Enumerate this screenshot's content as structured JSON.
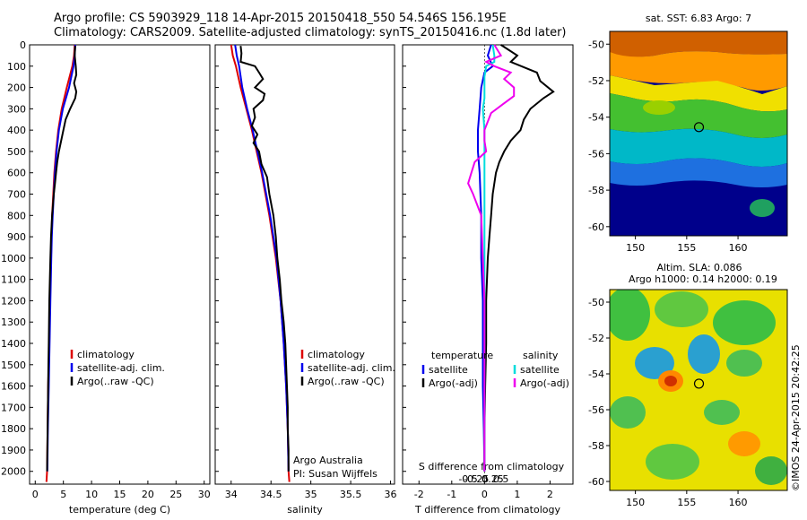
{
  "header": {
    "line1": "Argo profile: CS 5903929_118 14-Apr-2015 20150418_550 54.546S 156.195E",
    "line2": "Climatology: CARS2009. Satellite-adjusted climatology: synTS_20150416.nc (1.8d later)"
  },
  "chart_data": [
    {
      "type": "line",
      "id": "temperature",
      "xlabel": "temperature (deg C)",
      "ylabel": "",
      "xlim": [
        -1,
        31
      ],
      "ylim": [
        2060,
        0
      ],
      "xticks": [
        0,
        5,
        10,
        15,
        20,
        25,
        30
      ],
      "yticks": [
        0,
        100,
        200,
        300,
        400,
        500,
        600,
        700,
        800,
        900,
        1000,
        1100,
        1200,
        1300,
        1400,
        1500,
        1600,
        1700,
        1800,
        1900,
        2000
      ],
      "legend": [
        "climatology",
        "satellite-adj. clim.",
        "Argo(..raw -QC)"
      ],
      "legend_placement": "lower-right",
      "series": [
        {
          "name": "climatology",
          "color": "#dd0000",
          "depth": [
            0,
            50,
            100,
            200,
            300,
            400,
            500,
            600,
            700,
            800,
            900,
            1000,
            1200,
            1400,
            1600,
            1800,
            2000,
            2050
          ],
          "values": [
            7.0,
            6.9,
            6.6,
            5.6,
            4.7,
            4.1,
            3.7,
            3.4,
            3.2,
            3.0,
            2.9,
            2.8,
            2.6,
            2.5,
            2.3,
            2.2,
            2.1,
            2.0
          ]
        },
        {
          "name": "satellite-adj. clim.",
          "color": "#0000ee",
          "depth": [
            0,
            50,
            100,
            200,
            300,
            400,
            500,
            600,
            700,
            800,
            900,
            1000,
            1200,
            1400,
            1600,
            1800,
            2000
          ],
          "values": [
            7.1,
            7.0,
            6.8,
            6.0,
            4.9,
            4.2,
            3.8,
            3.5,
            3.3,
            3.1,
            2.95,
            2.85,
            2.7,
            2.55,
            2.4,
            2.25,
            2.15
          ]
        },
        {
          "name": "Argo(..raw -QC)",
          "color": "#000000",
          "depth": [
            5,
            50,
            100,
            140,
            180,
            220,
            250,
            300,
            350,
            400,
            450,
            500,
            550,
            600,
            650,
            700,
            750,
            800,
            850,
            900,
            1000,
            1100,
            1200,
            1300,
            1400,
            1500,
            1600,
            1700,
            1800,
            1900,
            2000
          ],
          "values": [
            7.1,
            7.0,
            7.2,
            7.3,
            6.9,
            7.3,
            7.1,
            6.2,
            5.4,
            5.0,
            4.6,
            4.2,
            3.9,
            3.7,
            3.5,
            3.3,
            3.15,
            3.0,
            2.9,
            2.8,
            2.7,
            2.6,
            2.5,
            2.45,
            2.4,
            2.35,
            2.3,
            2.25,
            2.2,
            2.15,
            2.1
          ]
        }
      ]
    },
    {
      "type": "line",
      "id": "salinity",
      "xlabel": "salinity",
      "ylabel": "",
      "xlim": [
        33.8,
        36.05
      ],
      "ylim": [
        2060,
        0
      ],
      "xticks": [
        34,
        34.5,
        35,
        35.5,
        36
      ],
      "legend": [
        "climatology",
        "satellite-adj. clim.",
        "Argo(..raw -QC)"
      ],
      "legend_placement": "lower-right",
      "annotations": [
        "Argo Australia",
        "PI: Susan Wijffels"
      ],
      "series": [
        {
          "name": "climatology",
          "color": "#dd0000",
          "depth": [
            0,
            50,
            100,
            200,
            300,
            400,
            500,
            600,
            700,
            800,
            900,
            1000,
            1200,
            1400,
            1600,
            1800,
            2000,
            2050
          ],
          "values": [
            34.0,
            34.02,
            34.06,
            34.12,
            34.19,
            34.26,
            34.32,
            34.38,
            34.43,
            34.48,
            34.52,
            34.56,
            34.62,
            34.66,
            34.69,
            34.71,
            34.72,
            34.73
          ]
        },
        {
          "name": "satellite-adj. clim.",
          "color": "#0000ee",
          "depth": [
            0,
            50,
            100,
            200,
            300,
            400,
            500,
            600,
            700,
            800,
            900,
            1000,
            1200,
            1400,
            1600,
            1800,
            2000
          ],
          "values": [
            34.05,
            34.07,
            34.1,
            34.14,
            34.2,
            34.27,
            34.33,
            34.39,
            34.44,
            34.49,
            34.53,
            34.57,
            34.62,
            34.66,
            34.69,
            34.71,
            34.72
          ]
        },
        {
          "name": "Argo(..raw -QC)",
          "color": "#000000",
          "depth": [
            5,
            40,
            80,
            100,
            130,
            160,
            200,
            230,
            260,
            300,
            340,
            380,
            420,
            460,
            500,
            560,
            620,
            700,
            800,
            900,
            1000,
            1100,
            1200,
            1300,
            1400,
            1500,
            1600,
            1700,
            1800,
            1900,
            2000
          ],
          "values": [
            34.12,
            34.13,
            34.12,
            34.3,
            34.35,
            34.4,
            34.3,
            34.42,
            34.4,
            34.28,
            34.3,
            34.26,
            34.33,
            34.28,
            34.35,
            34.38,
            34.45,
            34.48,
            34.53,
            34.56,
            34.58,
            34.61,
            34.63,
            34.66,
            34.68,
            34.69,
            34.7,
            34.71,
            34.71,
            34.72,
            34.72
          ]
        }
      ]
    },
    {
      "type": "line",
      "id": "difference",
      "xlabel": "T difference from climatology",
      "x2label": "S difference from climatology",
      "xlim": [
        -2.5,
        2.7
      ],
      "xticks": [
        -2,
        -1,
        0,
        1,
        2
      ],
      "x2ticks": [
        "-0.5",
        "-0.25",
        "0",
        "0.25",
        "0.5"
      ],
      "x2tick_values": [
        -0.5,
        -0.25,
        0,
        0.25,
        0.5
      ],
      "legend_titles": [
        "temperature",
        "salinity"
      ],
      "legend": [
        "satellite",
        "Argo(-adj)",
        "satellite",
        "Argo(-adj)"
      ],
      "legend_placement": "lower-center",
      "series": [
        {
          "name": "satellite",
          "color": "#0000ee",
          "depth": [
            0,
            50,
            100,
            130,
            200,
            300,
            400,
            500,
            600,
            800,
            1000,
            1200,
            1400,
            1600,
            1800,
            2000
          ],
          "values": [
            0.2,
            0.1,
            0.25,
            0.0,
            -0.1,
            -0.15,
            -0.2,
            -0.2,
            -0.15,
            -0.1,
            -0.1,
            -0.05,
            -0.05,
            -0.05,
            -0.02,
            0.0
          ]
        },
        {
          "name": "Argo(-adj)",
          "color": "#000000",
          "depth": [
            0,
            50,
            80,
            130,
            170,
            220,
            250,
            300,
            350,
            400,
            450,
            500,
            550,
            600,
            650,
            700,
            800,
            900,
            1000,
            1200,
            1400,
            1600,
            1800,
            2000
          ],
          "values": [
            0.5,
            1.0,
            0.8,
            1.6,
            1.7,
            2.1,
            1.8,
            1.4,
            1.2,
            1.1,
            0.8,
            0.6,
            0.45,
            0.35,
            0.3,
            0.25,
            0.2,
            0.15,
            0.1,
            0.05,
            0.05,
            0.02,
            0.0,
            0.0
          ]
        },
        {
          "name": "satellite",
          "color": "#00dddd",
          "depth": [
            0,
            50,
            80,
            100,
            150,
            200,
            250,
            300,
            400,
            500,
            600,
            700,
            800,
            1000,
            1200,
            1400,
            1600,
            1800,
            2000
          ],
          "values": [
            0.25,
            0.3,
            0.3,
            0.05,
            0.0,
            0.0,
            0.0,
            -0.05,
            0.0,
            0.0,
            0.0,
            0.0,
            0.0,
            0.0,
            0.0,
            0.0,
            0.0,
            0.0,
            0.0
          ]
        },
        {
          "name": "Argo(-adj)",
          "color": "#ee00ee",
          "depth": [
            0,
            50,
            80,
            100,
            130,
            160,
            200,
            240,
            280,
            320,
            360,
            400,
            450,
            500,
            550,
            600,
            650,
            700,
            800,
            1000,
            1200,
            1400,
            1600,
            1800,
            2000
          ],
          "values": [
            0.3,
            0.5,
            0.05,
            0.3,
            0.8,
            0.6,
            0.9,
            0.9,
            0.55,
            0.2,
            0.1,
            0.0,
            0.0,
            0.05,
            -0.3,
            -0.4,
            -0.5,
            -0.35,
            -0.1,
            -0.05,
            0.0,
            0.0,
            0.0,
            0.0,
            0.0
          ]
        }
      ]
    }
  ],
  "maps": [
    {
      "id": "sst",
      "title": "sat. SST: 6.83  Argo: 7",
      "xticks": [
        "150",
        "155",
        "160"
      ],
      "yticks": [
        "-50",
        "-52",
        "-54",
        "-56",
        "-58",
        "-60"
      ],
      "lon_range": [
        147.5,
        164.8
      ],
      "lat_range": [
        -60.5,
        -49.3
      ],
      "marker_lon": 156.195,
      "marker_lat": -54.546
    },
    {
      "id": "sla",
      "title_line1": "Altim. SLA: 0.086",
      "title_line2": "Argo h1000: 0.14 h2000: 0.19",
      "xticks": [
        "150",
        "155",
        "160"
      ],
      "yticks": [
        "-50",
        "-52",
        "-54",
        "-56",
        "-58",
        "-60"
      ],
      "lon_range": [
        147.5,
        164.8
      ],
      "lat_range": [
        -60.5,
        -49.3
      ],
      "marker_lon": 156.195,
      "marker_lat": -54.546
    }
  ],
  "credit": "©IMOS 24-Apr-2015 20:42:25"
}
